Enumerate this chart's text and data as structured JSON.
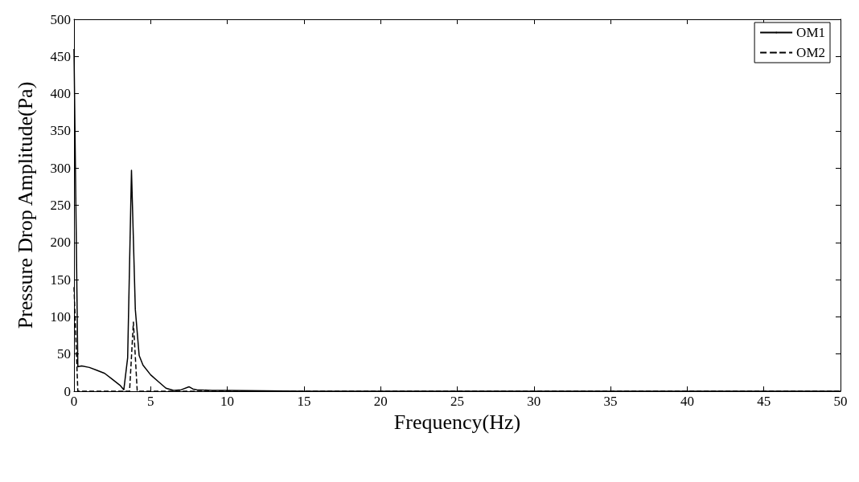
{
  "chart_data": {
    "type": "line",
    "xlabel": "Frequency(Hz)",
    "ylabel": "Pressure Drop Amplitude(Pa)",
    "xlim": [
      0,
      50
    ],
    "xticks": [
      0,
      5,
      10,
      15,
      20,
      25,
      30,
      35,
      40,
      45,
      50
    ],
    "ylim": [
      0,
      500
    ],
    "yticks": [
      0,
      50,
      100,
      150,
      200,
      250,
      300,
      350,
      400,
      450,
      500
    ],
    "grid": false,
    "legend": "top right",
    "marker": "none",
    "series": [
      {
        "name": "OM1",
        "color": "#000000",
        "line_style": "solid",
        "x": [
          0,
          0.25,
          0.5,
          1,
          1.5,
          2,
          2.5,
          3,
          3.25,
          3.5,
          3.75,
          4,
          4.25,
          4.5,
          5,
          5.5,
          6,
          6.5,
          7,
          7.5,
          7.75,
          8,
          9,
          10,
          15,
          50
        ],
        "values": [
          460,
          33,
          34,
          32,
          28,
          24,
          16,
          8,
          2,
          45,
          297,
          110,
          48,
          35,
          22,
          13,
          4,
          1,
          2,
          6,
          3,
          2,
          1,
          1,
          0,
          0
        ]
      },
      {
        "name": "OM2",
        "color": "#000000",
        "line_style": "dashed",
        "x": [
          0,
          0.25,
          3.5,
          3.625,
          3.875,
          4.125,
          50
        ],
        "values": [
          140,
          0,
          0,
          0,
          93,
          0,
          0
        ]
      }
    ]
  }
}
